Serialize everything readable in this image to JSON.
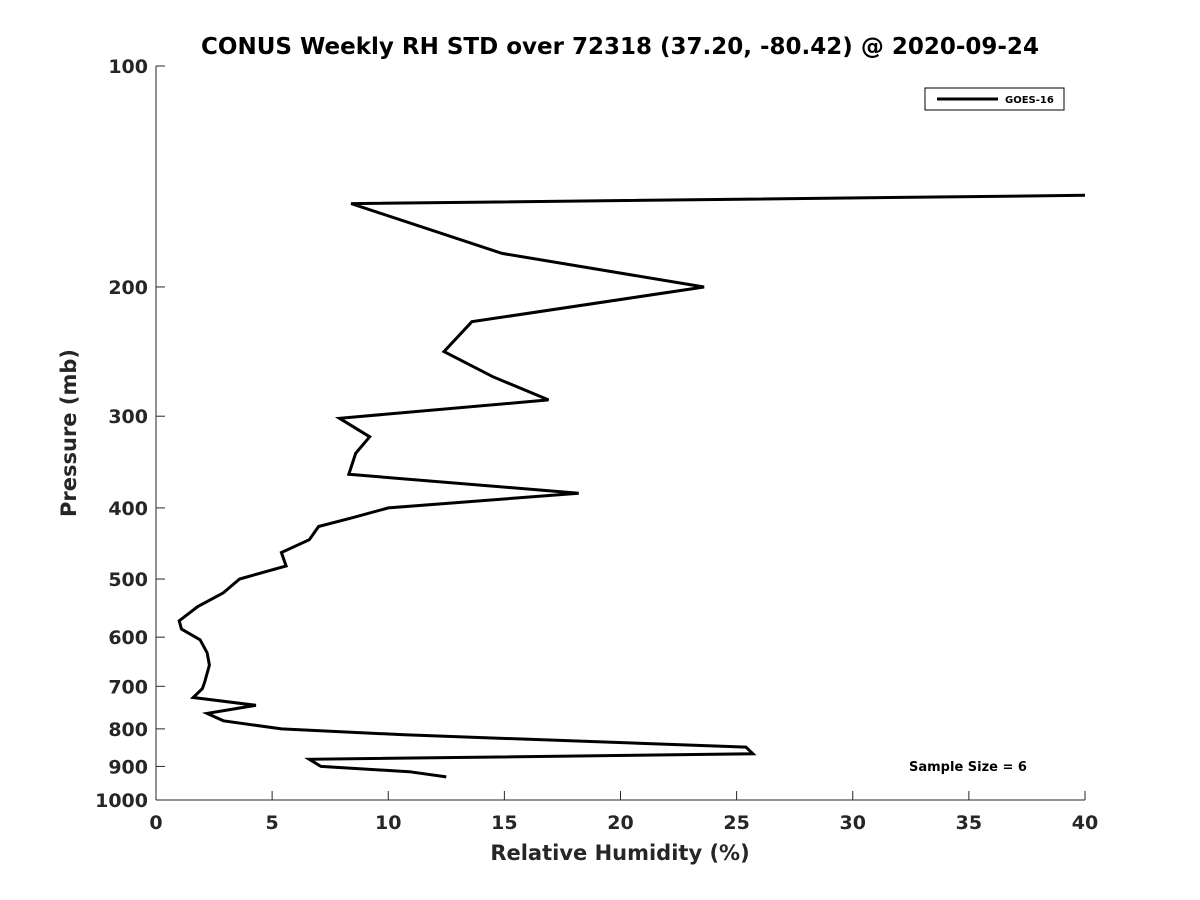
{
  "chart_data": {
    "type": "line",
    "title": "CONUS Weekly RH STD over 72318 (37.20, -80.42) @ 2020-09-24",
    "xlabel": "Relative Humidity (%)",
    "ylabel": "Pressure (mb)",
    "xlim": [
      0,
      40
    ],
    "ylim": [
      100,
      1000
    ],
    "yscale": "log",
    "y_reversed": true,
    "xticks": [
      0,
      5,
      10,
      15,
      20,
      25,
      30,
      35,
      40
    ],
    "yticks": [
      100,
      200,
      300,
      400,
      500,
      600,
      700,
      800,
      900,
      1000
    ],
    "grid": false,
    "legend": {
      "position": "top-right",
      "entries": [
        "GOES-16"
      ]
    },
    "annotation": "Sample Size = 6",
    "line_color": "#000000",
    "series": [
      {
        "name": "GOES-16",
        "points": [
          [
            40.0,
            150
          ],
          [
            8.4,
            154
          ],
          [
            14.9,
            180
          ],
          [
            23.6,
            200
          ],
          [
            13.6,
            223
          ],
          [
            12.4,
            245
          ],
          [
            14.5,
            265
          ],
          [
            16.9,
            285
          ],
          [
            7.9,
            302
          ],
          [
            9.2,
            320
          ],
          [
            8.6,
            337
          ],
          [
            8.3,
            360
          ],
          [
            18.2,
            382
          ],
          [
            10.0,
            400
          ],
          [
            8.4,
            413
          ],
          [
            7.0,
            424
          ],
          [
            6.6,
            442
          ],
          [
            5.4,
            460
          ],
          [
            5.6,
            480
          ],
          [
            3.6,
            500
          ],
          [
            2.9,
            522
          ],
          [
            1.8,
            545
          ],
          [
            1.0,
            570
          ],
          [
            1.1,
            585
          ],
          [
            1.9,
            605
          ],
          [
            2.2,
            630
          ],
          [
            2.3,
            655
          ],
          [
            2.1,
            690
          ],
          [
            2.0,
            705
          ],
          [
            1.6,
            725
          ],
          [
            4.3,
            743
          ],
          [
            2.2,
            762
          ],
          [
            2.9,
            780
          ],
          [
            5.4,
            800
          ],
          [
            10.7,
            815
          ],
          [
            25.4,
            847
          ],
          [
            25.7,
            865
          ],
          [
            6.6,
            880
          ],
          [
            7.1,
            900
          ],
          [
            10.9,
            915
          ],
          [
            12.5,
            930
          ]
        ]
      }
    ]
  }
}
